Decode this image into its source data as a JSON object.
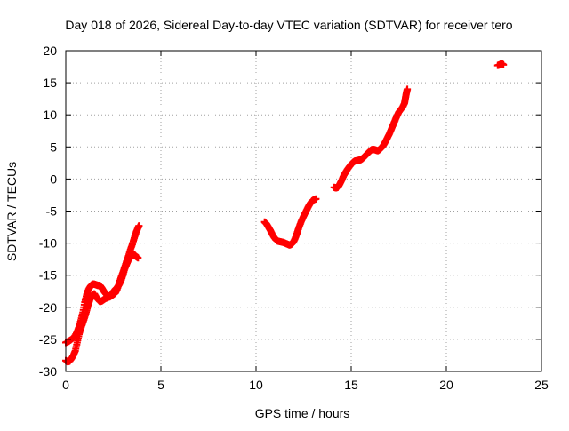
{
  "chart_data": {
    "type": "scatter",
    "title": "Day 018 of 2026, Sidereal Day-to-day VTEC variation (SDTVAR) for receiver tero",
    "xlabel": "GPS time / hours",
    "ylabel": "SDTVAR / TECUs",
    "xlim": [
      0,
      25
    ],
    "ylim": [
      -30,
      20
    ],
    "x_ticks": [
      "0",
      "5",
      "10",
      "15",
      "20",
      "25"
    ],
    "y_ticks": [
      "20",
      "15",
      "10",
      "5",
      "0",
      "-5",
      "-10",
      "-15",
      "-20",
      "-25",
      "-30"
    ],
    "grid": true,
    "legend": "none",
    "marker": "plus",
    "series_color": "#ff0000",
    "series": [
      {
        "values": [
          [
            0.0,
            -28.3
          ],
          [
            0.1,
            -28.5
          ],
          [
            0.2,
            -28.4
          ],
          [
            0.3,
            -28.0
          ],
          [
            0.4,
            -27.5
          ],
          [
            0.5,
            -26.8
          ],
          [
            0.6,
            -25.5
          ],
          [
            0.7,
            -24.2
          ],
          [
            0.8,
            -23.2
          ],
          [
            0.9,
            -22.4
          ],
          [
            1.0,
            -21.5
          ],
          [
            1.1,
            -20.5
          ],
          [
            1.2,
            -19.4
          ],
          [
            1.3,
            -18.6
          ],
          [
            1.4,
            -18.1
          ],
          [
            1.5,
            -17.9
          ],
          [
            1.6,
            -18.4
          ],
          [
            1.7,
            -18.8
          ],
          [
            1.8,
            -19.1
          ],
          [
            1.9,
            -19.0
          ],
          [
            2.0,
            -18.8
          ],
          [
            2.1,
            -18.6
          ],
          [
            2.2,
            -18.5
          ],
          [
            2.3,
            -18.3
          ],
          [
            2.4,
            -18.0
          ],
          [
            2.5,
            -17.6
          ],
          [
            2.6,
            -17.2
          ],
          [
            2.7,
            -16.9
          ],
          [
            2.8,
            -16.5
          ],
          [
            2.9,
            -15.9
          ],
          [
            3.0,
            -15.0
          ],
          [
            3.1,
            -14.0
          ],
          [
            3.2,
            -13.3
          ],
          [
            3.3,
            -12.6
          ],
          [
            3.4,
            -12.1
          ],
          [
            3.5,
            -11.9
          ],
          [
            3.6,
            -11.8
          ],
          [
            3.7,
            -12.1
          ],
          [
            3.8,
            -12.3
          ]
        ]
      },
      {
        "values": [
          [
            0.0,
            -25.5
          ],
          [
            0.15,
            -25.3
          ],
          [
            0.3,
            -25.0
          ],
          [
            0.45,
            -24.6
          ],
          [
            0.6,
            -23.8
          ],
          [
            0.7,
            -23.0
          ],
          [
            0.8,
            -22.0
          ],
          [
            0.9,
            -20.8
          ],
          [
            1.0,
            -19.2
          ],
          [
            1.1,
            -18.0
          ],
          [
            1.2,
            -17.2
          ],
          [
            1.3,
            -16.7
          ],
          [
            1.4,
            -16.4
          ],
          [
            1.5,
            -16.4
          ],
          [
            1.6,
            -16.5
          ],
          [
            1.7,
            -16.6
          ],
          [
            1.8,
            -16.6
          ],
          [
            1.9,
            -17.0
          ],
          [
            2.0,
            -17.5
          ],
          [
            2.1,
            -17.9
          ],
          [
            2.2,
            -18.2
          ],
          [
            2.3,
            -18.4
          ],
          [
            2.4,
            -18.2
          ],
          [
            2.5,
            -18.0
          ],
          [
            2.6,
            -17.8
          ],
          [
            2.7,
            -17.2
          ],
          [
            2.8,
            -16.3
          ],
          [
            2.9,
            -15.4
          ],
          [
            3.0,
            -14.6
          ],
          [
            3.1,
            -13.7
          ],
          [
            3.2,
            -12.8
          ],
          [
            3.3,
            -12.0
          ],
          [
            3.4,
            -11.0
          ],
          [
            3.5,
            -10.2
          ],
          [
            3.6,
            -9.2
          ],
          [
            3.7,
            -8.3
          ],
          [
            3.8,
            -7.6
          ],
          [
            3.85,
            -7.3
          ]
        ]
      },
      {
        "values": [
          [
            10.45,
            -6.7
          ],
          [
            10.55,
            -7.0
          ],
          [
            10.65,
            -7.5
          ],
          [
            10.75,
            -8.0
          ],
          [
            10.85,
            -8.6
          ],
          [
            10.95,
            -9.1
          ],
          [
            11.05,
            -9.5
          ],
          [
            11.15,
            -9.7
          ],
          [
            11.3,
            -9.8
          ],
          [
            11.45,
            -9.9
          ],
          [
            11.6,
            -10.1
          ],
          [
            11.75,
            -10.3
          ],
          [
            11.85,
            -10.2
          ],
          [
            11.95,
            -9.9
          ],
          [
            12.05,
            -9.3
          ],
          [
            12.15,
            -8.5
          ],
          [
            12.25,
            -7.6
          ],
          [
            12.35,
            -6.8
          ],
          [
            12.45,
            -6.1
          ],
          [
            12.55,
            -5.5
          ],
          [
            12.65,
            -4.9
          ],
          [
            12.75,
            -4.3
          ],
          [
            12.85,
            -3.8
          ],
          [
            12.95,
            -3.4
          ],
          [
            13.05,
            -3.2
          ],
          [
            13.15,
            -3.1
          ]
        ]
      },
      {
        "values": [
          [
            14.1,
            -1.3
          ],
          [
            14.2,
            -1.4
          ],
          [
            14.3,
            -1.3
          ],
          [
            14.4,
            -0.8
          ],
          [
            14.5,
            -0.2
          ],
          [
            14.6,
            0.5
          ],
          [
            14.7,
            1.0
          ],
          [
            14.8,
            1.5
          ],
          [
            14.9,
            1.9
          ],
          [
            15.0,
            2.3
          ],
          [
            15.1,
            2.6
          ],
          [
            15.2,
            2.8
          ],
          [
            15.35,
            2.9
          ],
          [
            15.5,
            3.0
          ],
          [
            15.6,
            3.2
          ],
          [
            15.7,
            3.5
          ],
          [
            15.8,
            3.8
          ],
          [
            15.9,
            4.1
          ],
          [
            16.0,
            4.4
          ],
          [
            16.1,
            4.6
          ],
          [
            16.2,
            4.6
          ],
          [
            16.3,
            4.5
          ],
          [
            16.4,
            4.4
          ],
          [
            16.5,
            4.6
          ],
          [
            16.6,
            4.9
          ],
          [
            16.7,
            5.3
          ],
          [
            16.8,
            5.8
          ],
          [
            16.9,
            6.4
          ],
          [
            17.0,
            7.0
          ],
          [
            17.1,
            7.7
          ],
          [
            17.2,
            8.4
          ],
          [
            17.3,
            9.1
          ],
          [
            17.4,
            9.8
          ],
          [
            17.5,
            10.4
          ],
          [
            17.6,
            10.8
          ],
          [
            17.7,
            11.2
          ],
          [
            17.8,
            11.8
          ],
          [
            17.85,
            12.6
          ],
          [
            17.9,
            13.4
          ],
          [
            17.95,
            14.0
          ]
        ]
      },
      {
        "values": [
          [
            22.7,
            17.7
          ],
          [
            22.8,
            17.8
          ],
          [
            22.9,
            18.0
          ],
          [
            23.0,
            17.8
          ]
        ]
      }
    ]
  }
}
